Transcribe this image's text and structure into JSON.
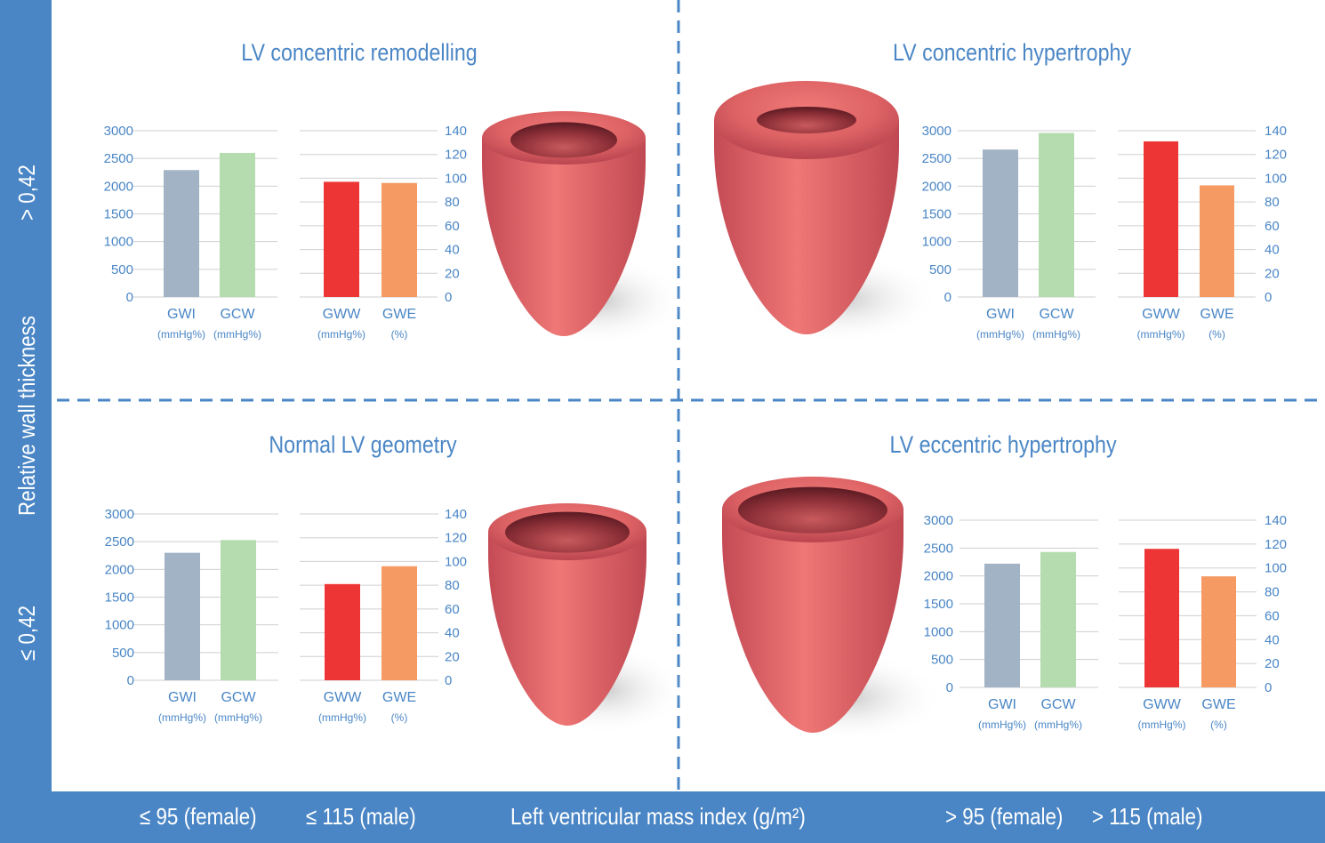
{
  "axes": {
    "y_axis_label": "Relative wall thickness",
    "y_upper": "> 0,42",
    "y_lower": "≤ 0,42",
    "x_axis_label": "Left ventricular mass index (g/m²)",
    "x_left_female": "≤ 95 (female)",
    "x_left_male": "≤ 115 (male)",
    "x_right_female": "> 95 (female)",
    "x_right_male": "> 115 (male)"
  },
  "colors": {
    "band": "#4a86c5",
    "GWI": "#a2b3c6",
    "GCW": "#b5dcae",
    "GWW": "#ee3535",
    "GWE": "#f59a63",
    "heart": "#df6465"
  },
  "chart_data": [
    {
      "type": "bar",
      "title": "LV concentric remodelling",
      "left": {
        "categories": [
          "GWI",
          "GCW"
        ],
        "units": [
          "(mmHg%)",
          "(mmHg%)"
        ],
        "values": [
          2290,
          2600
        ],
        "ylim": [
          0,
          3000
        ],
        "ticks": [
          0,
          500,
          1000,
          1500,
          2000,
          2500,
          3000
        ]
      },
      "right": {
        "categories": [
          "GWW",
          "GWE"
        ],
        "units": [
          "(mmHg%)",
          "(%)"
        ],
        "values": [
          97,
          96
        ],
        "ylim": [
          0,
          140
        ],
        "ticks": [
          0,
          20,
          40,
          60,
          80,
          100,
          120,
          140
        ]
      }
    },
    {
      "type": "bar",
      "title": "LV concentric hypertrophy",
      "left": {
        "categories": [
          "GWI",
          "GCW"
        ],
        "units": [
          "(mmHg%)",
          "(mmHg%)"
        ],
        "values": [
          2660,
          2960
        ],
        "ylim": [
          0,
          3000
        ],
        "ticks": [
          0,
          500,
          1000,
          1500,
          2000,
          2500,
          3000
        ]
      },
      "right": {
        "categories": [
          "GWW",
          "GWE"
        ],
        "units": [
          "(mmHg%)",
          "(%)"
        ],
        "values": [
          131,
          94
        ],
        "ylim": [
          0,
          140
        ],
        "ticks": [
          0,
          20,
          40,
          60,
          80,
          100,
          120,
          140
        ]
      }
    },
    {
      "type": "bar",
      "title": "Normal LV geometry",
      "left": {
        "categories": [
          "GWI",
          "GCW"
        ],
        "units": [
          "(mmHg%)",
          "(mmHg%)"
        ],
        "values": [
          2300,
          2530
        ],
        "ylim": [
          0,
          3000
        ],
        "ticks": [
          0,
          500,
          1000,
          1500,
          2000,
          2500,
          3000
        ]
      },
      "right": {
        "categories": [
          "GWW",
          "GWE"
        ],
        "units": [
          "(mmHg%)",
          "(%)"
        ],
        "values": [
          81,
          96
        ],
        "ylim": [
          0,
          140
        ],
        "ticks": [
          0,
          20,
          40,
          60,
          80,
          100,
          120,
          140
        ]
      }
    },
    {
      "type": "bar",
      "title": "LV eccentric hypertrophy",
      "left": {
        "categories": [
          "GWI",
          "GCW"
        ],
        "units": [
          "(mmHg%)",
          "(mmHg%)"
        ],
        "values": [
          2220,
          2430
        ],
        "ylim": [
          0,
          3000
        ],
        "ticks": [
          0,
          500,
          1000,
          1500,
          2000,
          2500,
          3000
        ]
      },
      "right": {
        "categories": [
          "GWW",
          "GWE"
        ],
        "units": [
          "(mmHg%)",
          "(%)"
        ],
        "values": [
          116,
          93
        ],
        "ylim": [
          0,
          140
        ],
        "ticks": [
          0,
          20,
          40,
          60,
          80,
          100,
          120,
          140
        ]
      }
    }
  ]
}
